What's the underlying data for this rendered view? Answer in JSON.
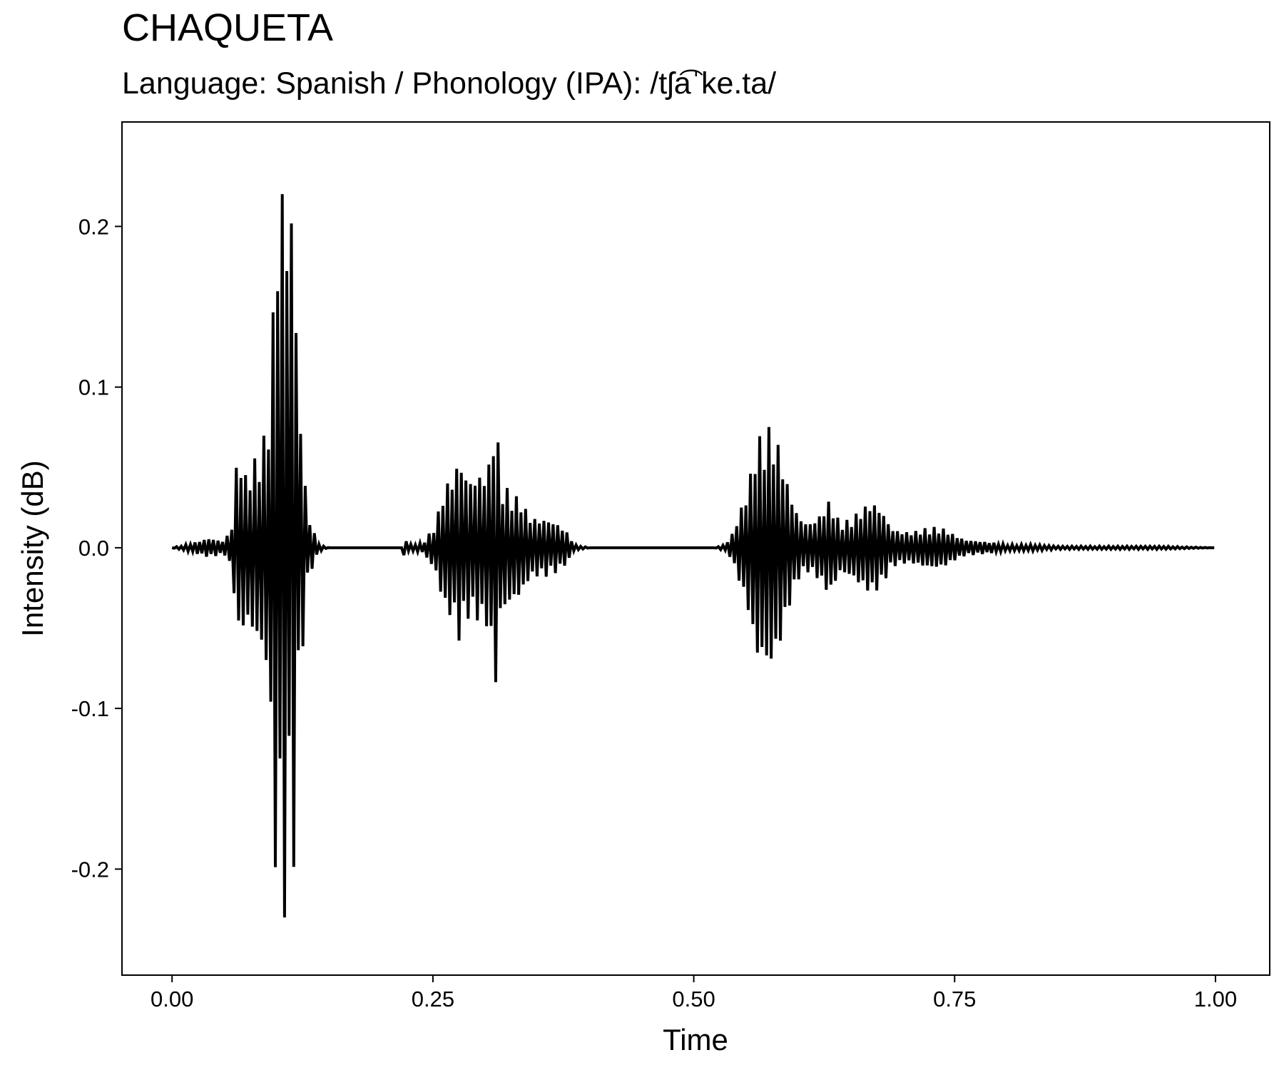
{
  "chart_data": {
    "type": "line",
    "title": "CHAQUETA",
    "subtitle": "Language: Spanish / Phonology (IPA): /tʃa͡ˈke.ta/",
    "xlabel": "Time",
    "ylabel": "Intensity (dB)",
    "xlim": [
      -0.048,
      1.052
    ],
    "ylim": [
      -0.266,
      0.265
    ],
    "x_ticks": [
      0.0,
      0.25,
      0.5,
      0.75,
      1.0
    ],
    "x_tick_labels": [
      "0.00",
      "0.25",
      "0.50",
      "0.75",
      "1.00"
    ],
    "y_ticks": [
      0.2,
      0.1,
      0.0,
      -0.1,
      -0.2
    ],
    "y_tick_labels": [
      "0.2",
      "0.1",
      "0.0",
      "-0.1",
      "-0.2"
    ],
    "grid": false,
    "line_color": "#000000",
    "series": [
      {
        "x": [
          0.0,
          0.02,
          0.035,
          0.05,
          0.058,
          0.062,
          0.066,
          0.07,
          0.075,
          0.082,
          0.087,
          0.092,
          0.097,
          0.1,
          0.103,
          0.106,
          0.109,
          0.112,
          0.115,
          0.118,
          0.121,
          0.125,
          0.13,
          0.135,
          0.14,
          0.145,
          0.15,
          0.18,
          0.2,
          0.22,
          0.223,
          0.226,
          0.24,
          0.252,
          0.256,
          0.262,
          0.27,
          0.275,
          0.28,
          0.285,
          0.29,
          0.295,
          0.3,
          0.305,
          0.31,
          0.315,
          0.32,
          0.328,
          0.335,
          0.342,
          0.35,
          0.36,
          0.37,
          0.38,
          0.385,
          0.4,
          0.45,
          0.52,
          0.53,
          0.535,
          0.542,
          0.55,
          0.555,
          0.56,
          0.565,
          0.57,
          0.575,
          0.58,
          0.585,
          0.59,
          0.595,
          0.6,
          0.61,
          0.62,
          0.63,
          0.64,
          0.65,
          0.66,
          0.67,
          0.675,
          0.68,
          0.685,
          0.69,
          0.7,
          0.71,
          0.72,
          0.73,
          0.74,
          0.75,
          0.76,
          0.775,
          0.79,
          0.8,
          0.825,
          0.85,
          0.875,
          0.9,
          0.95,
          1.0
        ],
        "y": [
          0.0,
          0.003,
          0.006,
          0.004,
          0.015,
          0.055,
          0.058,
          0.045,
          0.052,
          0.058,
          0.068,
          0.078,
          0.152,
          0.232,
          0.16,
          0.24,
          0.228,
          0.16,
          0.232,
          0.17,
          0.098,
          0.065,
          0.02,
          0.012,
          0.003,
          0.001,
          0.0,
          0.0,
          0.0,
          0.0,
          0.008,
          0.002,
          0.003,
          0.014,
          0.025,
          0.04,
          0.045,
          0.058,
          0.048,
          0.043,
          0.045,
          0.046,
          0.048,
          0.055,
          0.09,
          0.04,
          0.038,
          0.033,
          0.03,
          0.02,
          0.018,
          0.018,
          0.015,
          0.009,
          0.002,
          0.0,
          0.0,
          0.0,
          0.002,
          0.006,
          0.018,
          0.035,
          0.048,
          0.072,
          0.068,
          0.077,
          0.073,
          0.067,
          0.055,
          0.04,
          0.03,
          0.02,
          0.015,
          0.02,
          0.03,
          0.016,
          0.018,
          0.024,
          0.029,
          0.027,
          0.024,
          0.018,
          0.012,
          0.01,
          0.01,
          0.012,
          0.013,
          0.012,
          0.008,
          0.005,
          0.004,
          0.003,
          0.002,
          0.002,
          0.001,
          0.001,
          0.001,
          0.001,
          0.0
        ]
      }
    ]
  }
}
